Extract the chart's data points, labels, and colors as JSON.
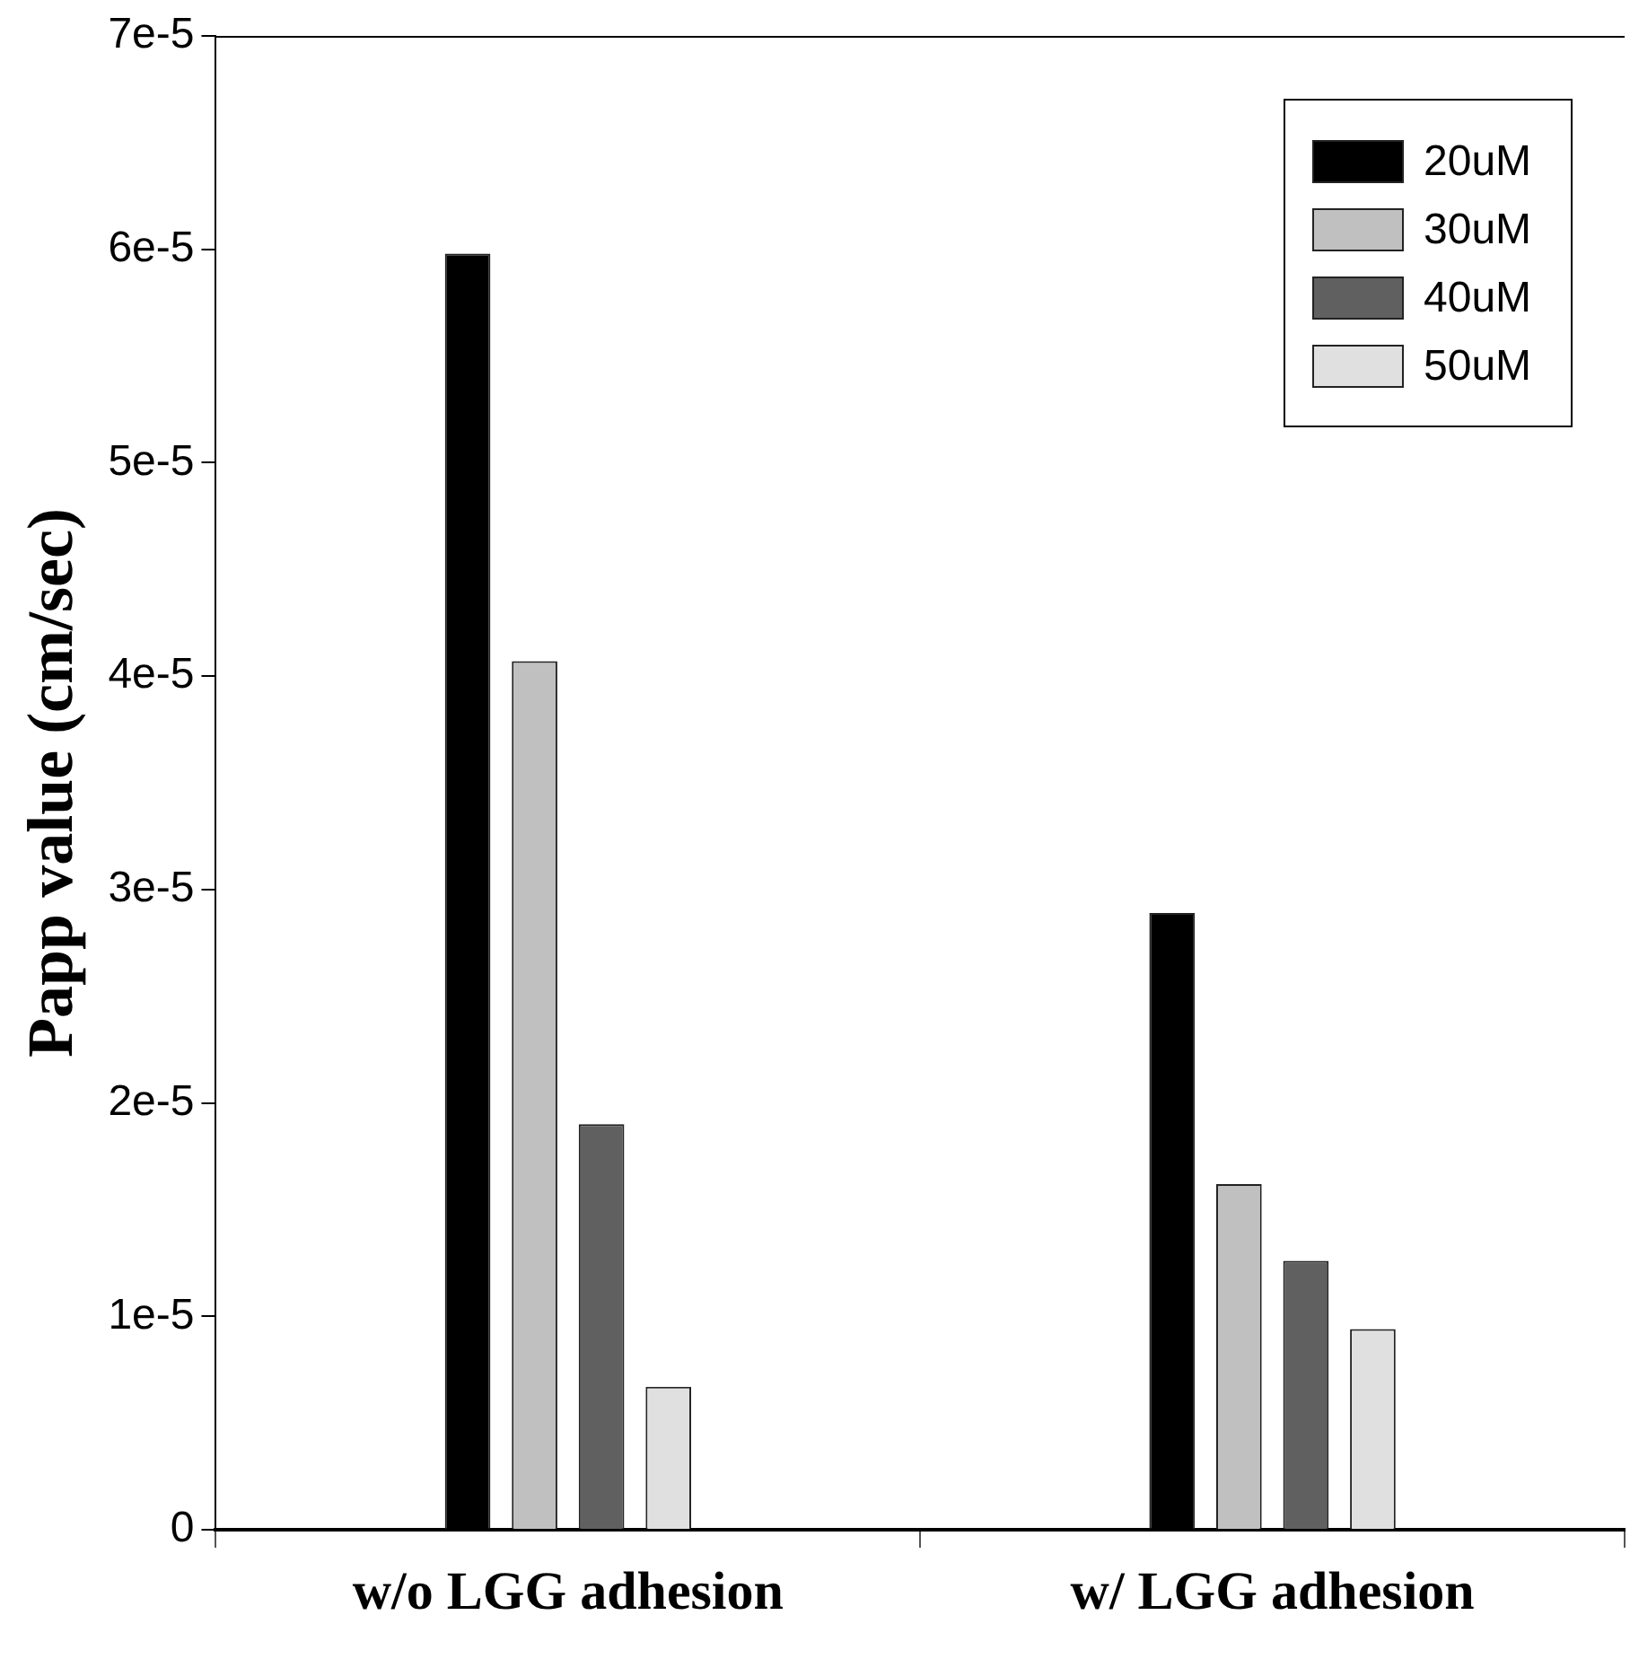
{
  "chart_data": {
    "type": "bar",
    "ylabel": "Papp value (cm/sec)",
    "categories": [
      "w/o LGG adhesion",
      "w/ LGG adhesion"
    ],
    "series": [
      {
        "name": "20uM",
        "color": "#000000",
        "values": [
          5.98e-05,
          2.89e-05
        ]
      },
      {
        "name": "30uM",
        "color": "#c0c0c0",
        "values": [
          4.07e-05,
          1.62e-05
        ]
      },
      {
        "name": "40uM",
        "color": "#606060",
        "values": [
          1.9e-05,
          1.26e-05
        ]
      },
      {
        "name": "50uM",
        "color": "#e0e0e0",
        "values": [
          6.7e-06,
          9.4e-06
        ]
      }
    ],
    "ylim": [
      0,
      7e-05
    ],
    "yticks": [
      0,
      {
        "value": 1e-05,
        "label": "1e-5"
      },
      {
        "value": 2e-05,
        "label": "2e-5"
      },
      {
        "value": 3e-05,
        "label": "3e-5"
      },
      {
        "value": 4e-05,
        "label": "4e-5"
      },
      {
        "value": 5e-05,
        "label": "5e-5"
      },
      {
        "value": 6e-05,
        "label": "6e-5"
      },
      {
        "value": 7e-05,
        "label": "7e-5"
      }
    ],
    "grid": false,
    "legend": "top right"
  }
}
